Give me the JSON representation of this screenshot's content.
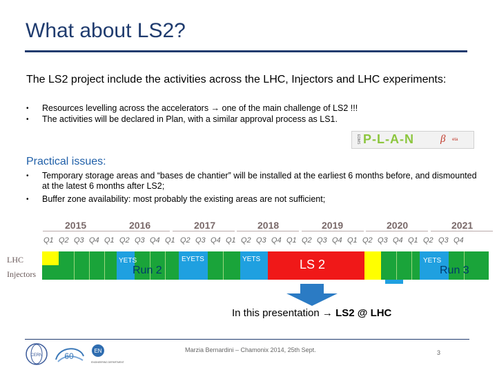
{
  "slide": {
    "title": "What about LS2?",
    "intro": "The LS2 project include the activities across the LHC, Injectors and LHC experiments:",
    "bullets1": [
      "Resources levelling across the accelerators → one of the main challenge of LS2 !!!",
      "The activities will be declared in Plan, with a similar approval process as LS1."
    ],
    "issues_heading": "Practical issues:",
    "bullets2": [
      "Temporary storage areas and “bases de chantier” will be installed at the earliest 6 months before, and dismounted at the latest 6 months after LS2;",
      "Buffer zone availability: most probably the existing areas are not sufficient;"
    ],
    "plan_logo": {
      "small": "EDMS",
      "word": "P-L-A-N",
      "beta": "β",
      "beta_sub": "eta"
    }
  },
  "timeline": {
    "years": [
      "2015",
      "2016",
      "2017",
      "2018",
      "2019",
      "2020",
      "2021"
    ],
    "quarters": [
      "Q1",
      "Q2",
      "Q3",
      "Q4",
      "Q1",
      "Q2",
      "Q3",
      "Q4",
      "Q1",
      "Q2",
      "Q3",
      "Q4",
      "Q1",
      "Q2",
      "Q3",
      "Q4",
      "Q1",
      "Q2",
      "Q3",
      "Q4",
      "Q1",
      "Q2",
      "Q3",
      "Q4",
      "Q1",
      "Q2",
      "Q3",
      "Q4"
    ],
    "row_labels": [
      "LHC",
      "Injectors"
    ],
    "yets_labels": [
      "YETS",
      "EYETS",
      "YETS",
      "YETS"
    ],
    "run2": "Run 2",
    "ls2": "LS 2",
    "run3": "Run 3",
    "colors": {
      "run": "#1aa43a",
      "yets": "#1fa0e0",
      "ls": "#f01818",
      "yellow": "#ffff00"
    }
  },
  "presentation": {
    "prefix": "In this presentation → ",
    "strong": "LS2 @ LHC"
  },
  "footer": {
    "text": "Marzia Bernardini – Chamonix 2014, 25th Sept.",
    "page": "3",
    "logo_cern": "CERN",
    "logo_en": "EN",
    "logo_en_dept": "ENGINEERING DEPARTMENT"
  }
}
